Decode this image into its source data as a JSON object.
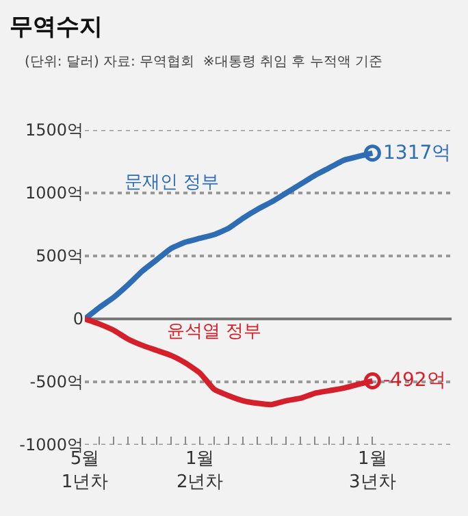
{
  "chart_data": {
    "type": "line",
    "title": "무역수지",
    "subtitle": "(단위: 달러) 자료: 무역협회  ※대통령 취임 후 누적액 기준",
    "categories": [
      "5월\n1년차",
      null,
      null,
      null,
      null,
      null,
      null,
      null,
      "1월\n2년차",
      null,
      null,
      null,
      null,
      null,
      null,
      null,
      null,
      null,
      null,
      null,
      "1월\n3년차"
    ],
    "series": [
      {
        "name": "문재인 정부",
        "color": "#2e6db4",
        "values": [
          0,
          90,
          170,
          270,
          380,
          470,
          560,
          610,
          640,
          670,
          720,
          800,
          870,
          930,
          1000,
          1070,
          1140,
          1200,
          1260,
          1290,
          1317
        ]
      },
      {
        "name": "윤석열 정부",
        "color": "#d4202a",
        "values": [
          0,
          -40,
          -90,
          -160,
          -210,
          -250,
          -290,
          -350,
          -430,
          -560,
          -610,
          -650,
          -670,
          -680,
          -650,
          -630,
          -590,
          -570,
          -550,
          -520,
          -492
        ]
      }
    ],
    "annotations": [
      {
        "text": "1317억",
        "x": "1월\n3년차",
        "y": 1317
      },
      {
        "text": "-492억",
        "x": "1월\n3년차",
        "y": -492
      }
    ],
    "ylim": [
      -1000,
      1500
    ],
    "yticks": [
      {
        "value": -1000,
        "label": "-1000억"
      },
      {
        "value": -500,
        "label": "-500억"
      },
      0,
      {
        "value": 500,
        "label": "500억"
      },
      {
        "value": 1000,
        "label": "1000억"
      },
      {
        "value": 1500,
        "label": "1500억"
      }
    ],
    "grid": "y",
    "legend": false,
    "marker": "none",
    "line_style": "solid"
  }
}
